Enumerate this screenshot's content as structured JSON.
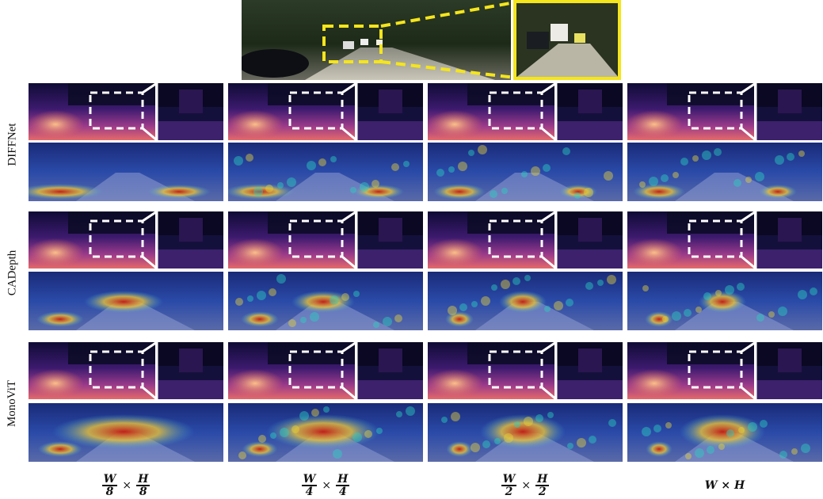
{
  "figure": {
    "row_labels": [
      "DIFFNet",
      "CADepth",
      "MonoViT"
    ],
    "column_labels": [
      {
        "num1": "W",
        "den1": "8",
        "times": "×",
        "num2": "H",
        "den2": "8"
      },
      {
        "num1": "W",
        "den1": "4",
        "times": "×",
        "num2": "H",
        "den2": "4"
      },
      {
        "num1": "W",
        "den1": "2",
        "times": "×",
        "num2": "H",
        "den2": "2"
      },
      {
        "plain": "W × H"
      }
    ],
    "colors": {
      "highlight": "#f5e51b",
      "dashed_box": "#ffffff",
      "depth_far": "#0d0a2e",
      "depth_mid": "#6a2a9a",
      "depth_near": "#f5a46a"
    },
    "panel_types": [
      "input-image",
      "depth-map",
      "attention-heatmap",
      "zoomed-inset"
    ]
  }
}
